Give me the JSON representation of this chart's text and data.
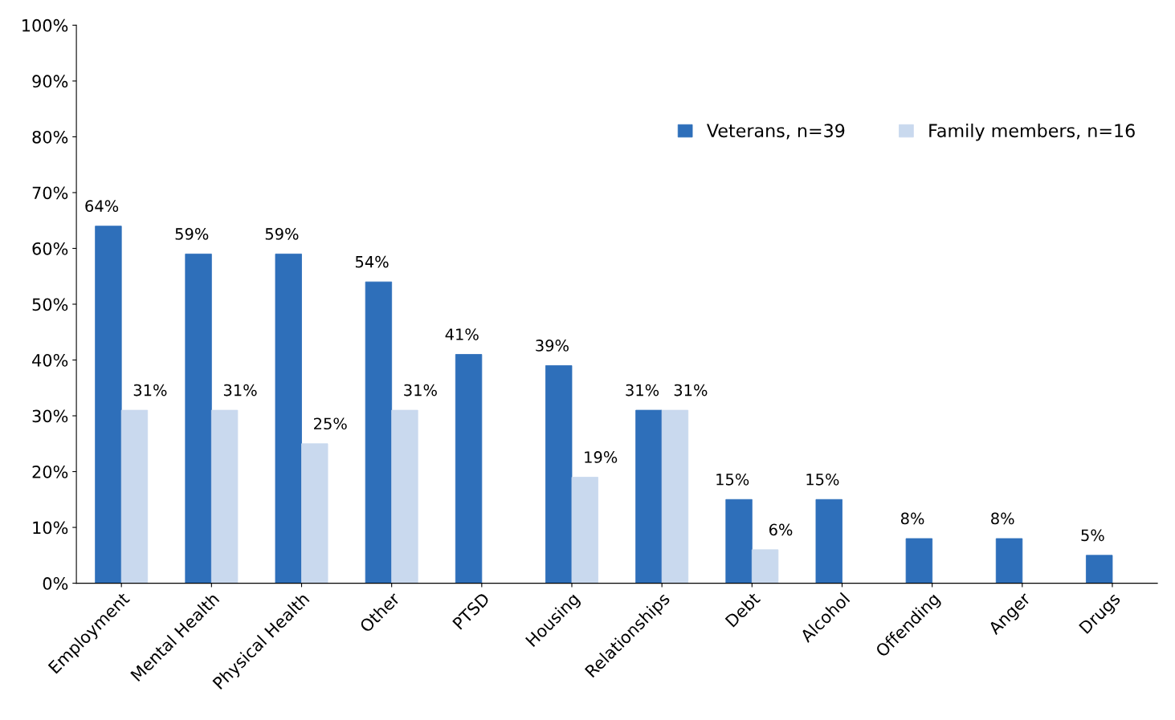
{
  "chart_data": {
    "type": "bar",
    "categories": [
      "Employment",
      "Mental Health",
      "Physical Health",
      "Other",
      "PTSD",
      "Housing",
      "Relationships",
      "Debt",
      "Alcohol",
      "Offending",
      "Anger",
      "Drugs"
    ],
    "series": [
      {
        "name": "Veterans, n=39",
        "color": "#2e6fba",
        "values": [
          64,
          59,
          59,
          54,
          41,
          39,
          31,
          15,
          15,
          8,
          8,
          5
        ],
        "value_labels": [
          "64%",
          "59%",
          "59%",
          "54%",
          "41%",
          "39%",
          "31%",
          "15%",
          "15%",
          "8%",
          "8%",
          "5%"
        ]
      },
      {
        "name": "Family members, n=16",
        "color": "#c9d9ee",
        "values": [
          31,
          31,
          25,
          31,
          null,
          19,
          31,
          6,
          null,
          null,
          null,
          null
        ],
        "value_labels": [
          "31%",
          "31%",
          "25%",
          "31%",
          null,
          "19%",
          "31%",
          "6%",
          null,
          null,
          null,
          null
        ]
      }
    ],
    "ylim": [
      0,
      100
    ],
    "yticks": [
      {
        "value": 0,
        "label": "0%"
      },
      {
        "value": 10,
        "label": "10%"
      },
      {
        "value": 20,
        "label": "20%"
      },
      {
        "value": 30,
        "label": "30%"
      },
      {
        "value": 40,
        "label": "40%"
      },
      {
        "value": 50,
        "label": "50%"
      },
      {
        "value": 60,
        "label": "60%"
      },
      {
        "value": 70,
        "label": "70%"
      },
      {
        "value": 80,
        "label": "80%"
      },
      {
        "value": 90,
        "label": "90%"
      },
      {
        "value": 100,
        "label": "100%"
      }
    ],
    "grid": false,
    "legend": "top right"
  }
}
